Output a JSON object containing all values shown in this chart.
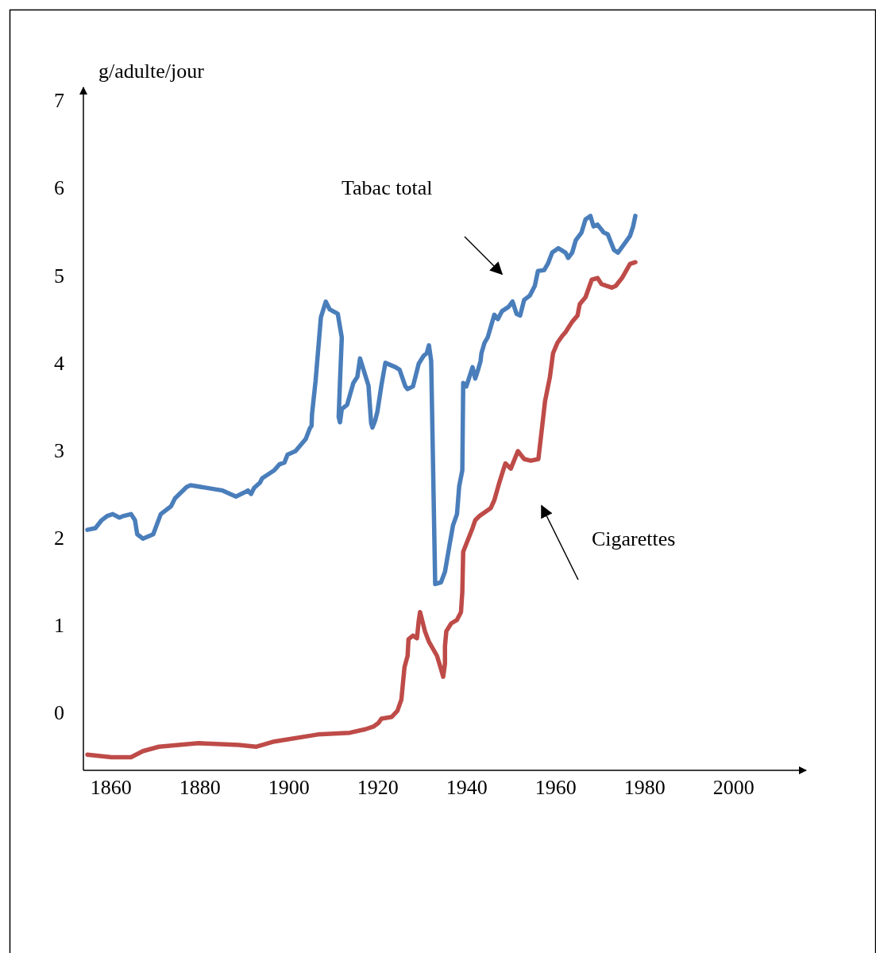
{
  "chart_data": {
    "type": "line",
    "ylabel": "g/adulte/jour",
    "xlim": [
      1853.9,
      2016.4
    ],
    "xticks": [
      1860,
      1880,
      1900,
      1920,
      1940,
      1960,
      1980,
      2000
    ],
    "ylim": [
      -0.66,
      7.15
    ],
    "yticks": [
      0,
      1,
      2,
      3,
      4,
      5,
      6,
      7
    ],
    "grid": false,
    "line_style": "solid",
    "marker": "none",
    "annotations": [
      "Tabac total",
      "Cigarettes"
    ],
    "series": [
      {
        "color": "#4a7ebb",
        "x": [
          1854.8,
          1856.6,
          1858,
          1859.3,
          1860.5,
          1862,
          1863,
          1864.6,
          1865.5,
          1866,
          1867.3,
          1869.6,
          1871.3,
          1873.6,
          1874.5,
          1877.1,
          1878,
          1885.2,
          1888.2,
          1890.2,
          1890.9,
          1891.6,
          1892.3,
          1893.6,
          1894.1,
          1896.8,
          1898,
          1899.1,
          1899.8,
          1901.6,
          1903.9,
          1904.8,
          1905.2,
          1905.3,
          1906.1,
          1907.3,
          1908.4,
          1909.3,
          1911.1,
          1912,
          1911.6,
          1911.3,
          1911.6,
          1912,
          1913.2,
          1914.6,
          1915.5,
          1916.1,
          1918,
          1918.6,
          1918.9,
          1919.5,
          1920,
          1920.9,
          1921.8,
          1924.1,
          1925,
          1926.3,
          1926.8,
          1928,
          1929.3,
          1930.4,
          1931.1,
          1931.6,
          1932.1,
          1933,
          1934.3,
          1935.2,
          1936.1,
          1937,
          1937.9,
          1938.4,
          1939.1,
          1939.3,
          1940,
          1941.4,
          1942,
          1942.7,
          1943.2,
          1943.4,
          1944.1,
          1944.8,
          1946.3,
          1947.1,
          1948,
          1949.5,
          1950.4,
          1951.3,
          1952.1,
          1953,
          1954.3,
          1955.4,
          1956.1,
          1957.5,
          1958.4,
          1959.3,
          1960.7,
          1962.3,
          1962.9,
          1963.8,
          1964.6,
          1965.9,
          1966.8,
          1967.9,
          1968.6,
          1969.5,
          1970.9,
          1971.8,
          1973.2,
          1974.1,
          1975.4,
          1976.8,
          1977.5,
          1978
        ],
        "values": [
          2.09,
          2.11,
          2.2,
          2.25,
          2.27,
          2.23,
          2.25,
          2.27,
          2.2,
          2.04,
          1.99,
          2.04,
          2.27,
          2.36,
          2.45,
          2.58,
          2.6,
          2.54,
          2.47,
          2.52,
          2.54,
          2.5,
          2.57,
          2.63,
          2.68,
          2.77,
          2.84,
          2.86,
          2.95,
          2.99,
          3.13,
          3.25,
          3.28,
          3.41,
          3.79,
          4.52,
          4.7,
          4.61,
          4.56,
          4.29,
          3.79,
          3.38,
          3.32,
          3.47,
          3.52,
          3.77,
          3.84,
          4.05,
          3.74,
          3.31,
          3.26,
          3.34,
          3.44,
          3.74,
          4.0,
          3.95,
          3.92,
          3.73,
          3.7,
          3.73,
          3.99,
          4.08,
          4.11,
          4.2,
          4.02,
          1.47,
          1.49,
          1.61,
          1.88,
          2.14,
          2.27,
          2.59,
          2.77,
          3.77,
          3.73,
          3.95,
          3.82,
          3.93,
          4.02,
          4.11,
          4.23,
          4.29,
          4.55,
          4.5,
          4.59,
          4.64,
          4.7,
          4.56,
          4.54,
          4.72,
          4.77,
          4.88,
          5.05,
          5.06,
          5.14,
          5.26,
          5.31,
          5.26,
          5.2,
          5.26,
          5.4,
          5.49,
          5.64,
          5.68,
          5.56,
          5.58,
          5.49,
          5.47,
          5.29,
          5.26,
          5.35,
          5.45,
          5.56,
          5.68
        ]
      },
      {
        "color": "#be4b48",
        "x": [
          1854.8,
          1860.2,
          1864.6,
          1867.3,
          1870.9,
          1879.8,
          1888.8,
          1892.7,
          1896.8,
          1906.6,
          1913.8,
          1917.3,
          1919.1,
          1920.2,
          1920.9,
          1923.2,
          1924.5,
          1925.4,
          1926.1,
          1926.8,
          1927,
          1928,
          1928.9,
          1929.3,
          1929.6,
          1930.7,
          1931.6,
          1933.4,
          1934.3,
          1934.8,
          1935.2,
          1935.2,
          1935.5,
          1936.6,
          1937.9,
          1938.8,
          1939.1,
          1939.3,
          1940,
          1941.4,
          1942,
          1943,
          1944.1,
          1945.5,
          1946.3,
          1947.3,
          1948.4,
          1948.8,
          1950,
          1951.6,
          1953,
          1954.5,
          1956.2,
          1957,
          1957.7,
          1958.8,
          1959.5,
          1960.5,
          1961.6,
          1962.3,
          1963.8,
          1965,
          1965.5,
          1966.8,
          1968.2,
          1969.5,
          1970.4,
          1972.7,
          1973.6,
          1975,
          1976.8,
          1978
        ],
        "values": [
          -0.48,
          -0.51,
          -0.51,
          -0.44,
          -0.39,
          -0.35,
          -0.37,
          -0.39,
          -0.33,
          -0.25,
          -0.23,
          -0.19,
          -0.16,
          -0.12,
          -0.07,
          -0.05,
          0.02,
          0.15,
          0.52,
          0.65,
          0.84,
          0.88,
          0.85,
          1.05,
          1.15,
          0.93,
          0.81,
          0.65,
          0.5,
          0.41,
          0.56,
          0.76,
          0.93,
          1.02,
          1.06,
          1.15,
          1.38,
          1.84,
          1.93,
          2.11,
          2.2,
          2.25,
          2.29,
          2.34,
          2.43,
          2.61,
          2.79,
          2.85,
          2.79,
          2.99,
          2.9,
          2.88,
          2.9,
          3.25,
          3.56,
          3.84,
          4.11,
          4.23,
          4.31,
          4.35,
          4.47,
          4.54,
          4.67,
          4.75,
          4.95,
          4.97,
          4.9,
          4.86,
          4.88,
          4.97,
          5.13,
          5.15
        ]
      }
    ]
  }
}
